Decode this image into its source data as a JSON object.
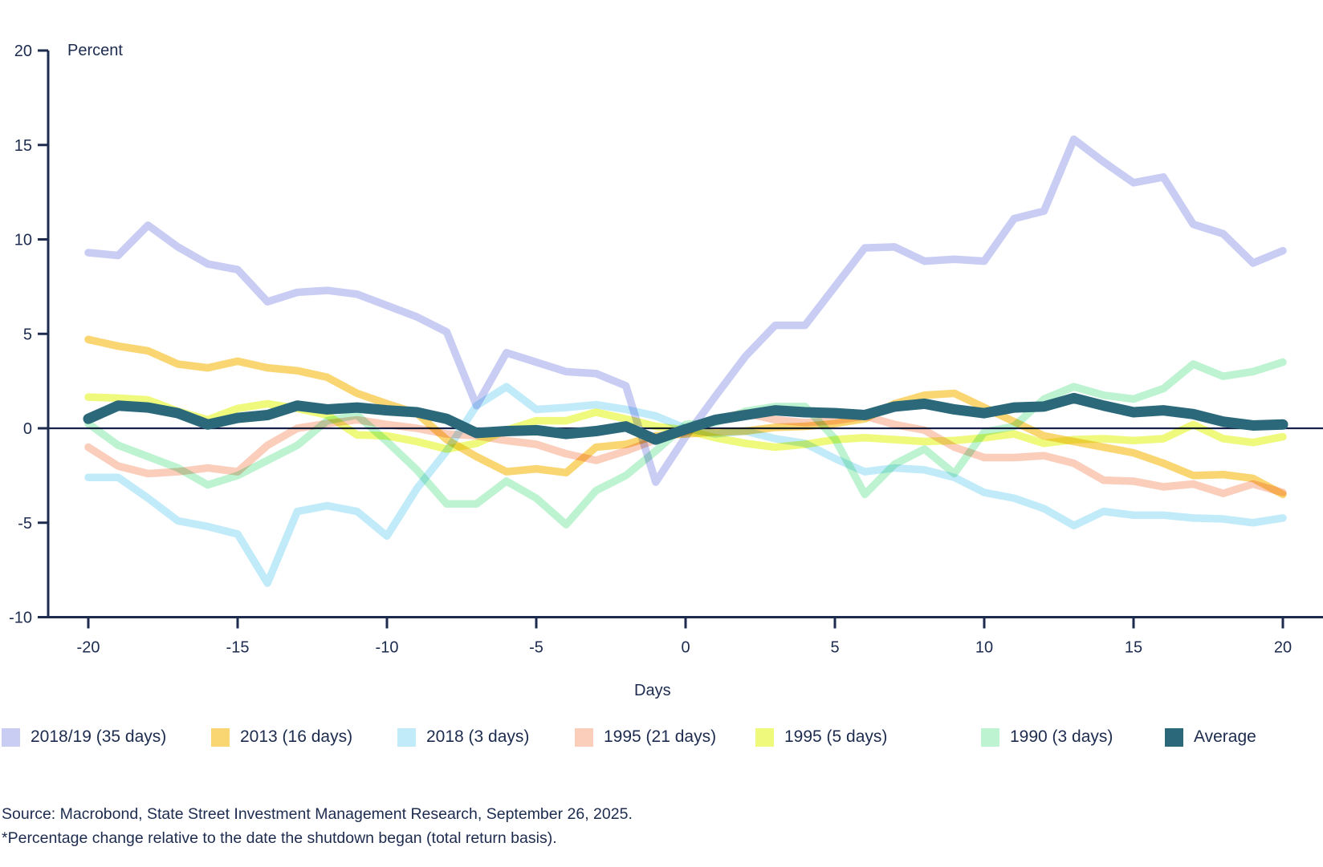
{
  "chart_data": {
    "type": "line",
    "title": "",
    "ylabel": "Percent",
    "xlabel": "Days",
    "ylim": [
      -10,
      20
    ],
    "xlim": [
      -20,
      20
    ],
    "grid": false,
    "legend_position": "bottom",
    "yticks": [
      20,
      15,
      10,
      5,
      0,
      -5,
      -10
    ],
    "xticks": [
      -20,
      -15,
      -10,
      -5,
      0,
      5,
      10,
      15,
      20
    ],
    "zero_line": 0,
    "x": [
      -20,
      -19,
      -18,
      -17,
      -16,
      -15,
      -14,
      -13,
      -12,
      -11,
      -10,
      -9,
      -8,
      -7,
      -6,
      -5,
      -4,
      -3,
      -2,
      -1,
      0,
      1,
      2,
      3,
      4,
      5,
      6,
      7,
      8,
      9,
      10,
      11,
      12,
      13,
      14,
      15,
      16,
      17,
      18,
      19,
      20
    ],
    "series": [
      {
        "name": "2018/19 (35 days)",
        "color": "#c9cdf4",
        "values": [
          9.3,
          9.15,
          10.75,
          9.6,
          8.7,
          8.4,
          6.7,
          7.2,
          7.3,
          7.1,
          6.5,
          5.9,
          5.1,
          1.2,
          4.0,
          3.5,
          3.0,
          2.9,
          2.25,
          -2.85,
          -0.45,
          1.7,
          3.8,
          5.45,
          5.45,
          7.5,
          9.55,
          9.6,
          8.85,
          8.95,
          8.85,
          11.1,
          11.5,
          15.3,
          14.1,
          13.0,
          13.3,
          10.8,
          10.3,
          8.75,
          9.4
        ]
      },
      {
        "name": "2013 (16 days)",
        "color": "#fad672",
        "values": [
          4.7,
          4.35,
          4.1,
          3.4,
          3.2,
          3.55,
          3.2,
          3.05,
          2.7,
          1.85,
          1.3,
          0.8,
          -0.6,
          -1.5,
          -2.3,
          -2.15,
          -2.35,
          -1.0,
          -0.85,
          -0.4,
          -0.3,
          -0.2,
          -0.15,
          0.05,
          0.1,
          0.25,
          0.5,
          1.3,
          1.75,
          1.85,
          1.1,
          0.35,
          -0.4,
          -0.7,
          -1.0,
          -1.3,
          -1.85,
          -2.5,
          -2.45,
          -2.65,
          -3.5
        ]
      },
      {
        "name": "2018 (3 days)",
        "color": "#c2ebfa",
        "values": [
          -2.6,
          -2.6,
          -3.7,
          -4.9,
          -5.2,
          -5.6,
          -8.2,
          -4.4,
          -4.1,
          -4.4,
          -5.7,
          -3.2,
          -1.2,
          1.2,
          2.2,
          1.0,
          1.1,
          1.25,
          1.0,
          0.65,
          0.0,
          -0.3,
          -0.15,
          -0.55,
          -0.8,
          -1.6,
          -2.3,
          -2.1,
          -2.2,
          -2.6,
          -3.4,
          -3.7,
          -4.25,
          -5.15,
          -4.4,
          -4.6,
          -4.6,
          -4.75,
          -4.8,
          -5.0,
          -4.75
        ]
      },
      {
        "name": "1995 (21 days)",
        "color": "#fbcdbb",
        "values": [
          -1.0,
          -2.0,
          -2.4,
          -2.3,
          -2.1,
          -2.3,
          -0.9,
          0.0,
          0.25,
          0.45,
          0.2,
          0.0,
          -0.3,
          -0.4,
          -0.65,
          -0.85,
          -1.35,
          -1.7,
          -1.2,
          -0.6,
          -0.2,
          0.5,
          0.8,
          0.45,
          0.3,
          0.4,
          0.65,
          0.2,
          -0.1,
          -1.0,
          -1.55,
          -1.55,
          -1.45,
          -1.85,
          -2.75,
          -2.8,
          -3.1,
          -2.95,
          -3.45,
          -2.95,
          -3.4
        ]
      },
      {
        "name": "1995 (5 days)",
        "color": "#eff97c",
        "values": [
          1.65,
          1.6,
          1.5,
          0.9,
          0.45,
          1.05,
          1.3,
          1.05,
          0.7,
          -0.35,
          -0.4,
          -0.7,
          -1.1,
          -0.8,
          -0.1,
          0.4,
          0.4,
          0.85,
          0.5,
          0.1,
          -0.1,
          -0.5,
          -0.8,
          -1.0,
          -0.85,
          -0.6,
          -0.5,
          -0.6,
          -0.7,
          -0.65,
          -0.5,
          -0.3,
          -0.8,
          -0.6,
          -0.55,
          -0.65,
          -0.55,
          0.2,
          -0.55,
          -0.75,
          -0.45
        ]
      },
      {
        "name": "1990 (3 days)",
        "color": "#bef3d2",
        "values": [
          0.25,
          -0.9,
          -1.5,
          -2.1,
          -3.0,
          -2.5,
          -1.7,
          -0.9,
          0.4,
          0.7,
          -0.7,
          -2.2,
          -4.0,
          -4.0,
          -2.8,
          -3.7,
          -5.1,
          -3.3,
          -2.5,
          -1.2,
          0.2,
          0.3,
          0.9,
          1.15,
          1.15,
          -0.55,
          -3.5,
          -1.9,
          -1.1,
          -2.4,
          -0.2,
          0.1,
          1.55,
          2.2,
          1.75,
          1.55,
          2.1,
          3.4,
          2.75,
          3.0,
          3.5
        ]
      },
      {
        "name": "Average",
        "color": "#2b6879",
        "values": [
          0.5,
          1.2,
          1.1,
          0.8,
          0.2,
          0.55,
          0.7,
          1.2,
          1.0,
          1.1,
          0.95,
          0.85,
          0.5,
          -0.25,
          -0.15,
          -0.1,
          -0.3,
          -0.15,
          0.1,
          -0.6,
          -0.05,
          0.45,
          0.7,
          0.95,
          0.85,
          0.8,
          0.7,
          1.15,
          1.3,
          1.0,
          0.8,
          1.1,
          1.15,
          1.6,
          1.2,
          0.85,
          0.95,
          0.75,
          0.35,
          0.15,
          0.2
        ]
      }
    ]
  },
  "legend": {
    "items": [
      {
        "label": "2018/19 (35 days)"
      },
      {
        "label": "2013 (16 days)"
      },
      {
        "label": "2018 (3 days)"
      },
      {
        "label": "1995 (21 days)"
      },
      {
        "label": "1995 (5 days)"
      },
      {
        "label": "1990 (3 days)"
      },
      {
        "label": "Average"
      }
    ]
  },
  "footer": {
    "source": "Source: Macrobond, State Street Investment Management Research, September 26, 2025.",
    "note": "*Percentage change relative to the date the shutdown began (total return basis)."
  },
  "colors": {
    "axis": "#1c2b4e",
    "zero_line": "#16224a",
    "text": "#1c2b4e"
  }
}
